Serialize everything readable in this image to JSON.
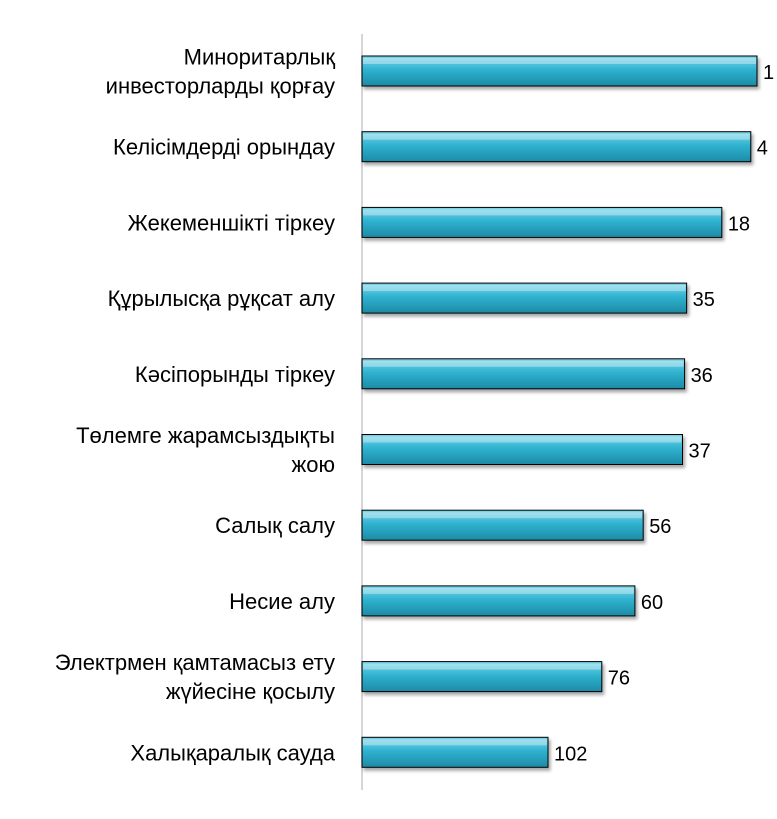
{
  "chart_data": {
    "type": "bar",
    "orientation": "horizontal",
    "categories": [
      [
        "Миноритарлық",
        "инвесторларды қорғау"
      ],
      [
        "Келісімдерді орындау"
      ],
      [
        "Жекеменшікті тіркеу"
      ],
      [
        "Құрылысқа рұқсат алу"
      ],
      [
        "Кәсіпорынды тіркеу"
      ],
      [
        "Төлемге жарамсыздықты",
        "жою"
      ],
      [
        "Салық салу"
      ],
      [
        "Несие алу"
      ],
      [
        "Электрмен қамтамасыз ету",
        "жүйесіне қосылу"
      ],
      [
        "Халықаралық сауда"
      ]
    ],
    "values": [
      1,
      4,
      18,
      35,
      36,
      37,
      56,
      60,
      76,
      102
    ],
    "value_labels": [
      "1",
      "4",
      "18",
      "35",
      "36",
      "37",
      "56",
      "60",
      "76",
      "102"
    ],
    "title": "",
    "xlabel": "",
    "ylabel": "",
    "xlim": [
      0,
      102
    ],
    "bar_length_rule": "length decreases as value increases (rank)",
    "grid": false,
    "legend": "none",
    "colors": {
      "bar_light": "#7fd6ea",
      "bar_main": "#2fb3d0",
      "bar_dark": "#1d8aa6",
      "bar_edge": "#000000",
      "axis": "#c8c8c8"
    }
  }
}
